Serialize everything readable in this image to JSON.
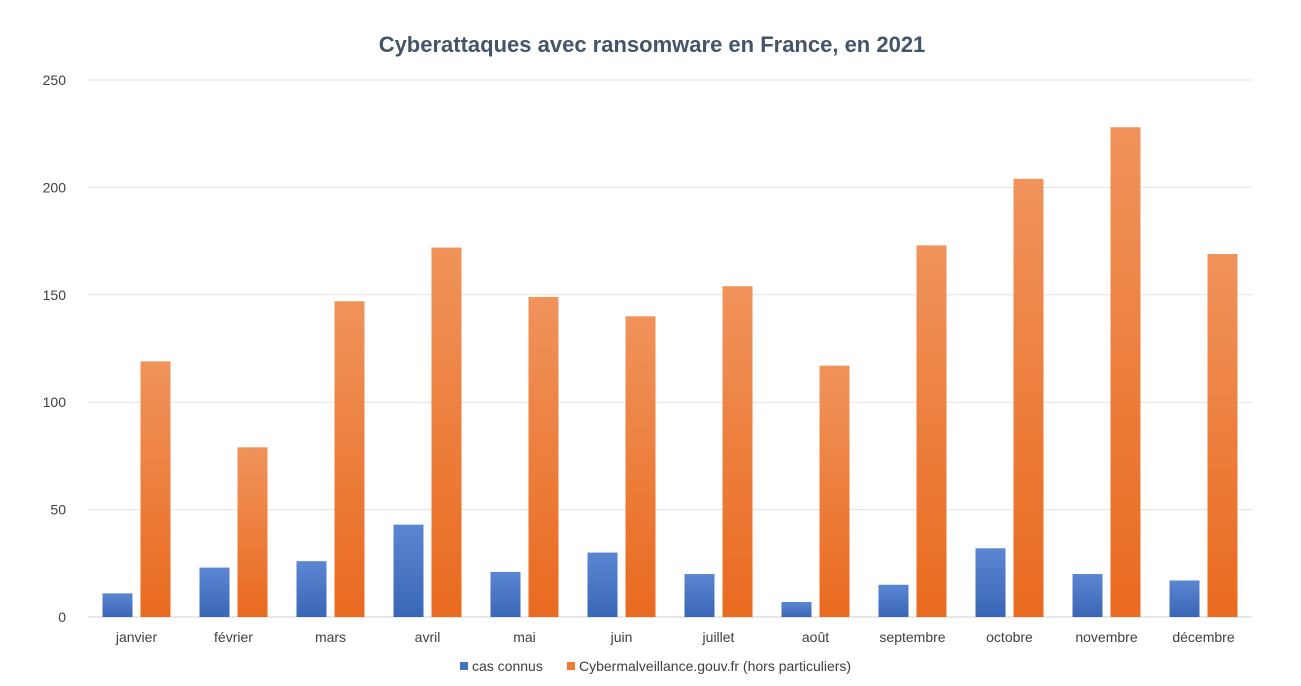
{
  "chart_data": {
    "type": "bar",
    "title": "Cyberattaques avec ransomware en France, en 2021",
    "xlabel": "",
    "ylabel": "",
    "ylim": [
      0,
      250
    ],
    "yticks": [
      0,
      50,
      100,
      150,
      200,
      250
    ],
    "grid": true,
    "legend_position": "bottom",
    "categories": [
      "janvier",
      "février",
      "mars",
      "avril",
      "mai",
      "juin",
      "juillet",
      "août",
      "septembre",
      "octobre",
      "novembre",
      "décembre"
    ],
    "series": [
      {
        "name": "cas connus",
        "color": "#4472c4",
        "values": [
          11,
          23,
          26,
          43,
          21,
          30,
          20,
          7,
          15,
          32,
          20,
          17
        ]
      },
      {
        "name": "Cybermalveillance.gouv.fr (hors particuliers)",
        "color": "#ed7d31",
        "values": [
          119,
          79,
          147,
          172,
          149,
          140,
          154,
          117,
          173,
          204,
          228,
          169
        ]
      }
    ]
  }
}
